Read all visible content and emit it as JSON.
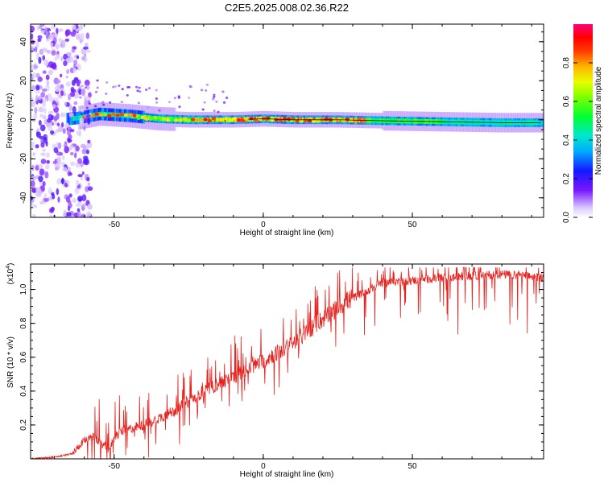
{
  "title": "C2E5.2025.008.02.36.R22",
  "colors": {
    "snr_line": "#e8221e",
    "line_center": "#111111"
  },
  "chart_data": [
    {
      "type": "heatmap",
      "xlabel": "Height of straight line (km)",
      "ylabel": "Frequency (Hz)",
      "xlim": [
        -78,
        94
      ],
      "ylim": [
        -50,
        49
      ],
      "x_ticks": [
        -50,
        0,
        50
      ],
      "y_ticks": [
        -40,
        -20,
        0,
        20,
        40
      ],
      "colorbar": {
        "label": "Normalized spectral amplitude",
        "range": [
          0.0,
          1.0
        ],
        "ticks": [
          0.0,
          0.2,
          0.4,
          0.6,
          0.8
        ],
        "colormap": "rainbow"
      },
      "ridge": [
        {
          "x": -75,
          "y": 0.0
        },
        {
          "x": -68,
          "y": 0.0
        },
        {
          "x": -62,
          "y": 1.0
        },
        {
          "x": -55,
          "y": 3.0
        },
        {
          "x": -45,
          "y": 2.0
        },
        {
          "x": -35,
          "y": 0.5
        },
        {
          "x": -25,
          "y": 0.0
        },
        {
          "x": -10,
          "y": 0.0
        },
        {
          "x": 0,
          "y": 0.5
        },
        {
          "x": 10,
          "y": 0.0
        },
        {
          "x": 25,
          "y": 0.0
        },
        {
          "x": 40,
          "y": -0.5
        },
        {
          "x": 60,
          "y": -1.0
        },
        {
          "x": 80,
          "y": -1.5
        },
        {
          "x": 94,
          "y": -1.5
        }
      ],
      "noise_region_x": [
        -78,
        -62
      ]
    },
    {
      "type": "line",
      "xlabel": "Height of straight line (km)",
      "ylabel": "SNR (10 * v/v)",
      "y_multiplier": "(x10^4)",
      "xlim": [
        -78,
        94
      ],
      "ylim": [
        0,
        1.15
      ],
      "x_ticks": [
        -50,
        0,
        50
      ],
      "y_ticks": [
        0.2,
        0.4,
        0.6,
        0.8,
        1.0
      ],
      "trend": [
        {
          "x": -78,
          "y": 0.0
        },
        {
          "x": -70,
          "y": 0.01
        },
        {
          "x": -64,
          "y": 0.03
        },
        {
          "x": -60,
          "y": 0.11
        },
        {
          "x": -57,
          "y": 0.13
        },
        {
          "x": -52,
          "y": 0.06
        },
        {
          "x": -48,
          "y": 0.16
        },
        {
          "x": -40,
          "y": 0.2
        },
        {
          "x": -30,
          "y": 0.28
        },
        {
          "x": -20,
          "y": 0.4
        },
        {
          "x": -10,
          "y": 0.48
        },
        {
          "x": 0,
          "y": 0.58
        },
        {
          "x": 10,
          "y": 0.68
        },
        {
          "x": 18,
          "y": 0.8
        },
        {
          "x": 28,
          "y": 0.93
        },
        {
          "x": 40,
          "y": 1.04
        },
        {
          "x": 55,
          "y": 1.06
        },
        {
          "x": 70,
          "y": 1.08
        },
        {
          "x": 80,
          "y": 1.09
        },
        {
          "x": 94,
          "y": 1.07
        }
      ]
    }
  ]
}
